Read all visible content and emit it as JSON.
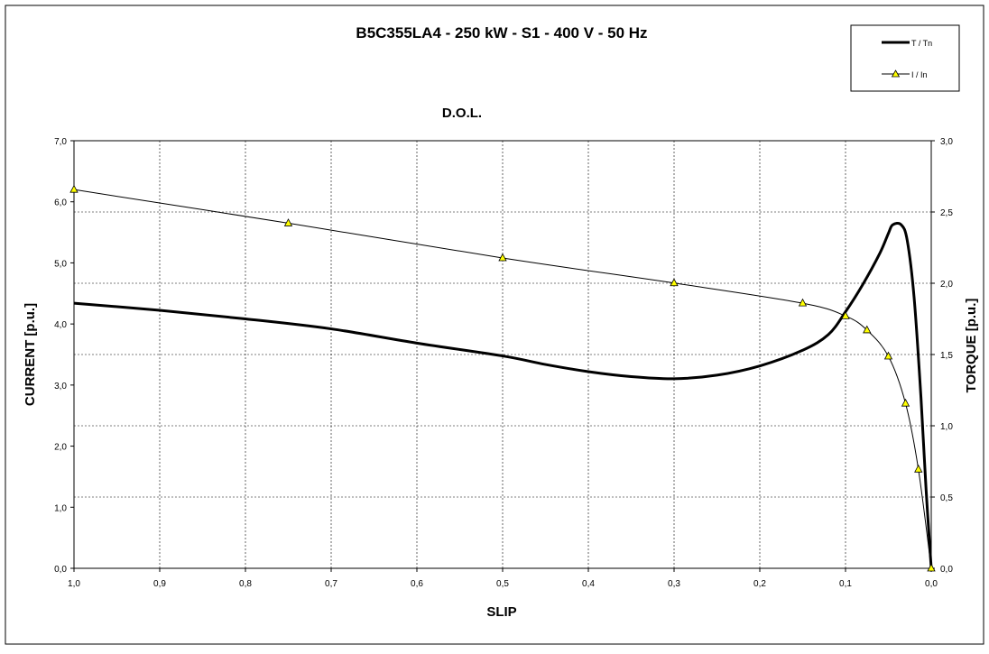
{
  "chart_data": {
    "type": "line",
    "title": "B5C355LA4  -  250  kW - S1 - 400 V -  50 Hz",
    "subtitle": "D.O.L.",
    "xlabel": "SLIP",
    "ylabel_left": "CURRENT [p.u.]",
    "ylabel_right": "TORQUE [p.u.]",
    "x_reversed": true,
    "xlim": [
      0,
      1
    ],
    "ylim_left": [
      0,
      7
    ],
    "ylim_right": [
      0,
      3
    ],
    "x_ticks": [
      "1,0",
      "0,9",
      "0,8",
      "0,7",
      "0,6",
      "0,5",
      "0,4",
      "0,3",
      "0,2",
      "0,1",
      "0,0"
    ],
    "y_left_ticks": [
      "0,0",
      "1,0",
      "2,0",
      "3,0",
      "4,0",
      "5,0",
      "6,0",
      "7,0"
    ],
    "y_right_ticks": [
      "0,0",
      "0,5",
      "1,0",
      "1,5",
      "2,0",
      "2,5",
      "3,0"
    ],
    "grid": true,
    "legend_position": "top-right",
    "series": [
      {
        "name": "T / Tn",
        "axis": "right",
        "color": "#000000",
        "marker": "none",
        "points": [
          [
            1.0,
            1.86
          ],
          [
            0.9,
            1.81
          ],
          [
            0.8,
            1.75
          ],
          [
            0.7,
            1.68
          ],
          [
            0.6,
            1.58
          ],
          [
            0.5,
            1.49
          ],
          [
            0.45,
            1.43
          ],
          [
            0.4,
            1.38
          ],
          [
            0.35,
            1.345
          ],
          [
            0.3,
            1.33
          ],
          [
            0.25,
            1.355
          ],
          [
            0.2,
            1.42
          ],
          [
            0.15,
            1.53
          ],
          [
            0.12,
            1.64
          ],
          [
            0.1,
            1.8
          ],
          [
            0.08,
            1.99
          ],
          [
            0.06,
            2.21
          ],
          [
            0.05,
            2.35
          ],
          [
            0.045,
            2.41
          ],
          [
            0.035,
            2.41
          ],
          [
            0.028,
            2.3
          ],
          [
            0.02,
            1.9
          ],
          [
            0.012,
            1.2
          ],
          [
            0.006,
            0.55
          ],
          [
            0.0,
            0.0
          ]
        ]
      },
      {
        "name": "I / In",
        "axis": "left",
        "color": "#000000",
        "marker": "triangle",
        "marker_color": "#ffff00",
        "points": [
          [
            1.0,
            6.2
          ],
          [
            0.75,
            5.65
          ],
          [
            0.5,
            5.08
          ],
          [
            0.3,
            4.67
          ],
          [
            0.15,
            4.34
          ],
          [
            0.1,
            4.13
          ],
          [
            0.075,
            3.9
          ],
          [
            0.05,
            3.47
          ],
          [
            0.03,
            2.7
          ],
          [
            0.015,
            1.62
          ],
          [
            0.0,
            0.0
          ]
        ]
      }
    ]
  }
}
